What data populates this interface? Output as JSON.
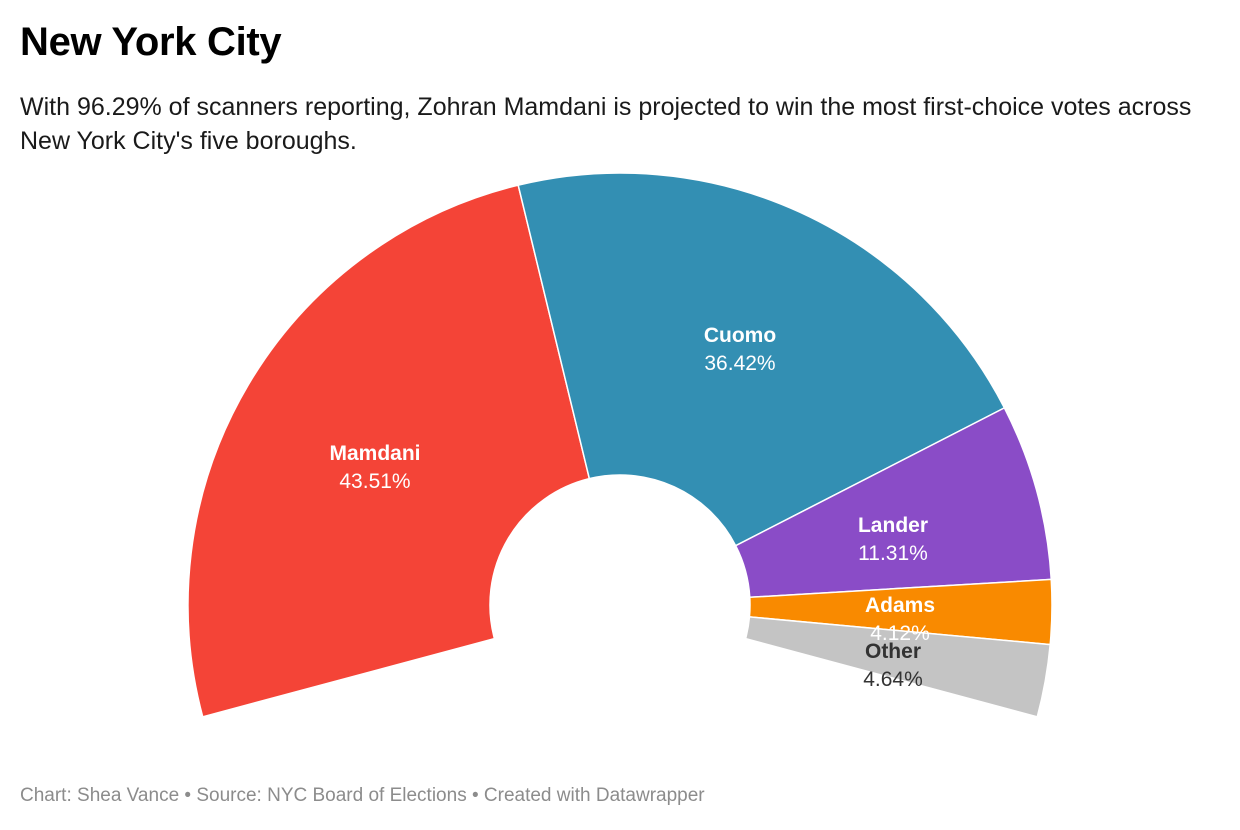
{
  "header": {
    "title": "New York City",
    "subtitle": "With 96.29% of scanners reporting, Zohran Mamdani is projected to win the most first-choice votes across New York City's five boroughs."
  },
  "footer": {
    "text": "Chart: Shea Vance • Source: NYC Board of Elections • Created with Datawrapper"
  },
  "chart_data": {
    "type": "pie",
    "variant": "partial-donut",
    "categories": [
      "Mamdani",
      "Cuomo",
      "Lander",
      "Adams",
      "Other"
    ],
    "values": [
      43.51,
      36.42,
      11.31,
      4.12,
      4.64
    ],
    "labels": [
      "43.51%",
      "36.42%",
      "11.31%",
      "4.12%",
      "4.64%"
    ],
    "colors": [
      "#f44437",
      "#338fb3",
      "#8a4cc7",
      "#f98a00",
      "#c4c4c4"
    ],
    "label_colors": [
      "#ffffff",
      "#ffffff",
      "#ffffff",
      "#ffffff",
      "#333333"
    ],
    "legend": "none"
  }
}
